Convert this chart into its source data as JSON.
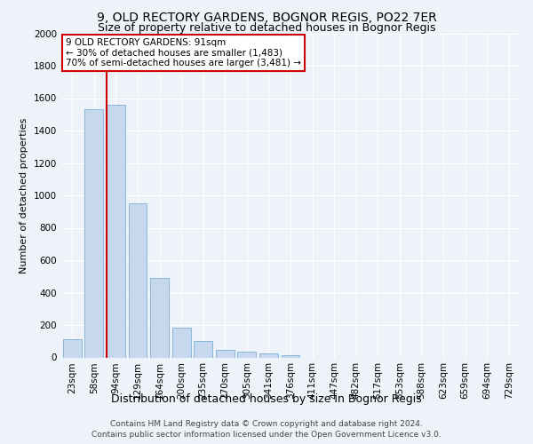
{
  "title": "9, OLD RECTORY GARDENS, BOGNOR REGIS, PO22 7ER",
  "subtitle": "Size of property relative to detached houses in Bognor Regis",
  "xlabel": "Distribution of detached houses by size in Bognor Regis",
  "ylabel": "Number of detached properties",
  "categories": [
    "23sqm",
    "58sqm",
    "94sqm",
    "129sqm",
    "164sqm",
    "200sqm",
    "235sqm",
    "270sqm",
    "305sqm",
    "341sqm",
    "376sqm",
    "411sqm",
    "447sqm",
    "482sqm",
    "517sqm",
    "553sqm",
    "588sqm",
    "623sqm",
    "659sqm",
    "694sqm",
    "729sqm"
  ],
  "values": [
    110,
    1530,
    1560,
    950,
    490,
    185,
    100,
    48,
    35,
    25,
    15,
    0,
    0,
    0,
    0,
    0,
    0,
    0,
    0,
    0,
    0
  ],
  "bar_color": "#c5d8ee",
  "bar_edge_color": "#7bafd4",
  "vline_x_index": 2,
  "vline_color": "#cc0000",
  "annotation_line1": "9 OLD RECTORY GARDENS: 91sqm",
  "annotation_line2": "← 30% of detached houses are smaller (1,483)",
  "annotation_line3": "70% of semi-detached houses are larger (3,481) →",
  "annotation_box_color": "#cc0000",
  "ylim": [
    0,
    2000
  ],
  "yticks": [
    0,
    200,
    400,
    600,
    800,
    1000,
    1200,
    1400,
    1600,
    1800,
    2000
  ],
  "footer1": "Contains HM Land Registry data © Crown copyright and database right 2024.",
  "footer2": "Contains public sector information licensed under the Open Government Licence v3.0.",
  "bg_color": "#eef2f9",
  "plot_bg_color": "#eef2f9",
  "title_fontsize": 10,
  "subtitle_fontsize": 9,
  "ylabel_fontsize": 8,
  "xlabel_fontsize": 9,
  "tick_fontsize": 7.5,
  "footer_fontsize": 6.5
}
